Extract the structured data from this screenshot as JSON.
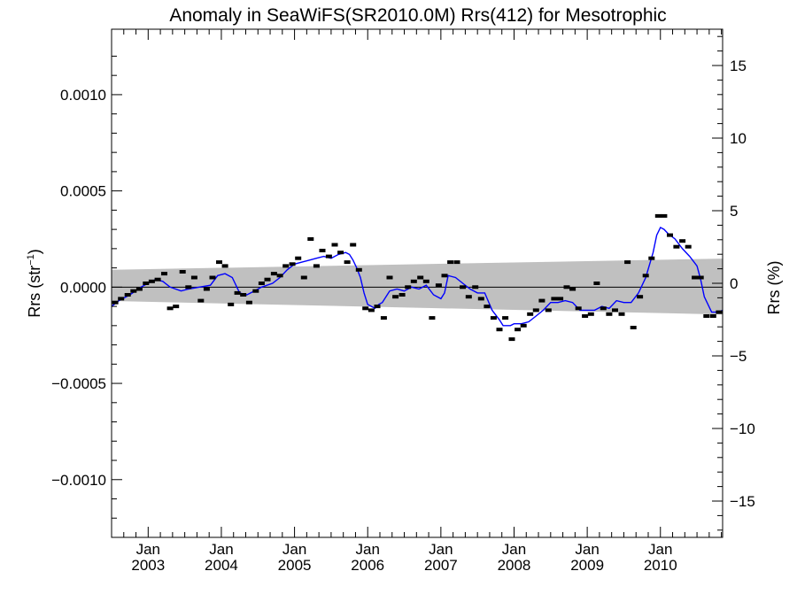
{
  "chart_data": {
    "type": "line",
    "title": "Anomaly in SeaWiFS(SR2010.0M) Rrs(412) for Mesotrophic",
    "ylabel_left_main": "Rrs (str",
    "ylabel_left_sup": "−1",
    "ylabel_left_close": ")",
    "ylabel_right": "Rrs (%)",
    "xlim": [
      2002.5,
      2010.85
    ],
    "ylim_left": [
      -0.0013,
      0.00134
    ],
    "ylim_right": [
      -17.5,
      17.5
    ],
    "yticks_left": [
      {
        "value": 0.001,
        "label": "0.0010"
      },
      {
        "value": 0.0005,
        "label": "0.0005"
      },
      {
        "value": 0.0,
        "label": "0.0000"
      },
      {
        "value": -0.0005,
        "label": "−0.0005"
      },
      {
        "value": -0.001,
        "label": "−0.0010"
      }
    ],
    "yticks_right": [
      {
        "value": 15,
        "label": "15"
      },
      {
        "value": 10,
        "label": "10"
      },
      {
        "value": 5,
        "label": "5"
      },
      {
        "value": 0,
        "label": "0"
      },
      {
        "value": -5,
        "label": "−5"
      },
      {
        "value": -10,
        "label": "−10"
      },
      {
        "value": -15,
        "label": "−15"
      }
    ],
    "xticks": [
      {
        "value": 2003.0,
        "month": "Jan",
        "year": "2003"
      },
      {
        "value": 2004.0,
        "month": "Jan",
        "year": "2004"
      },
      {
        "value": 2005.0,
        "month": "Jan",
        "year": "2005"
      },
      {
        "value": 2006.0,
        "month": "Jan",
        "year": "2006"
      },
      {
        "value": 2007.0,
        "month": "Jan",
        "year": "2007"
      },
      {
        "value": 2008.0,
        "month": "Jan",
        "year": "2008"
      },
      {
        "value": 2009.0,
        "month": "Jan",
        "year": "2009"
      },
      {
        "value": 2010.0,
        "month": "Jan",
        "year": "2010"
      }
    ],
    "band": {
      "x": [
        2002.5,
        2010.85
      ],
      "upper": [
        9e-05,
        0.000148
      ],
      "lower": [
        -7.2e-05,
        -0.000142
      ],
      "color": "#c0c0c0"
    },
    "series": [
      {
        "kind": "markers",
        "color": "#000000",
        "points": [
          [
            2002.55,
            -8e-05
          ],
          [
            2002.63,
            -6e-05
          ],
          [
            2002.72,
            -4e-05
          ],
          [
            2002.8,
            -2e-05
          ],
          [
            2002.88,
            -1e-05
          ],
          [
            2002.97,
            2e-05
          ],
          [
            2003.05,
            3e-05
          ],
          [
            2003.13,
            4e-05
          ],
          [
            2003.22,
            7e-05
          ],
          [
            2003.3,
            -0.00011
          ],
          [
            2003.38,
            -0.0001
          ],
          [
            2003.47,
            8e-05
          ],
          [
            2003.55,
            0.0
          ],
          [
            2003.63,
            5e-05
          ],
          [
            2003.72,
            -7e-05
          ],
          [
            2003.8,
            -1e-05
          ],
          [
            2003.88,
            5e-05
          ],
          [
            2003.97,
            0.00013
          ],
          [
            2004.05,
            0.00011
          ],
          [
            2004.13,
            -9e-05
          ],
          [
            2004.22,
            -3e-05
          ],
          [
            2004.3,
            -4e-05
          ],
          [
            2004.38,
            -8e-05
          ],
          [
            2004.47,
            -2e-05
          ],
          [
            2004.55,
            2e-05
          ],
          [
            2004.63,
            4e-05
          ],
          [
            2004.72,
            7e-05
          ],
          [
            2004.8,
            6e-05
          ],
          [
            2004.88,
            0.00011
          ],
          [
            2004.97,
            0.00012
          ],
          [
            2005.05,
            0.00015
          ],
          [
            2005.13,
            5e-05
          ],
          [
            2005.22,
            0.00025
          ],
          [
            2005.3,
            0.00011
          ],
          [
            2005.38,
            0.00019
          ],
          [
            2005.47,
            0.00016
          ],
          [
            2005.55,
            0.00022
          ],
          [
            2005.63,
            0.00018
          ],
          [
            2005.72,
            0.00013
          ],
          [
            2005.8,
            0.00022
          ],
          [
            2005.88,
            9e-05
          ],
          [
            2005.97,
            -0.00011
          ],
          [
            2006.05,
            -0.00012
          ],
          [
            2006.13,
            -0.0001
          ],
          [
            2006.22,
            -0.00016
          ],
          [
            2006.3,
            5e-05
          ],
          [
            2006.38,
            -5e-05
          ],
          [
            2006.47,
            -4e-05
          ],
          [
            2006.55,
            0.0
          ],
          [
            2006.63,
            3e-05
          ],
          [
            2006.72,
            5e-05
          ],
          [
            2006.8,
            3e-05
          ],
          [
            2006.88,
            -0.00016
          ],
          [
            2006.97,
            1e-05
          ],
          [
            2007.05,
            6e-05
          ],
          [
            2007.13,
            0.00013
          ],
          [
            2007.22,
            0.00013
          ],
          [
            2007.3,
            0.0
          ],
          [
            2007.38,
            -5e-05
          ],
          [
            2007.47,
            0.0
          ],
          [
            2007.55,
            -6e-05
          ],
          [
            2007.63,
            -0.0001
          ],
          [
            2007.72,
            -0.00016
          ],
          [
            2007.8,
            -0.00022
          ],
          [
            2007.88,
            -0.00016
          ],
          [
            2007.97,
            -0.00027
          ],
          [
            2008.05,
            -0.00022
          ],
          [
            2008.13,
            -0.0002
          ],
          [
            2008.22,
            -0.00014
          ],
          [
            2008.3,
            -0.00012
          ],
          [
            2008.38,
            -7e-05
          ],
          [
            2008.47,
            -0.00012
          ],
          [
            2008.55,
            -6e-05
          ],
          [
            2008.63,
            -6e-05
          ],
          [
            2008.72,
            0.0
          ],
          [
            2008.8,
            -1e-05
          ],
          [
            2008.88,
            -0.00011
          ],
          [
            2008.97,
            -0.00015
          ],
          [
            2009.05,
            -0.00014
          ],
          [
            2009.13,
            2e-05
          ],
          [
            2009.22,
            -0.00011
          ],
          [
            2009.3,
            -0.00014
          ],
          [
            2009.38,
            -0.00012
          ],
          [
            2009.47,
            -0.00014
          ],
          [
            2009.55,
            0.00013
          ],
          [
            2009.63,
            -0.00021
          ],
          [
            2009.72,
            -5e-05
          ],
          [
            2009.8,
            6e-05
          ],
          [
            2009.88,
            0.00015
          ],
          [
            2009.97,
            0.00037
          ],
          [
            2010.05,
            0.00037
          ],
          [
            2010.13,
            0.00027
          ],
          [
            2010.22,
            0.00021
          ],
          [
            2010.3,
            0.00024
          ],
          [
            2010.38,
            0.00021
          ],
          [
            2010.47,
            5e-05
          ],
          [
            2010.55,
            5e-05
          ],
          [
            2010.63,
            -0.00015
          ],
          [
            2010.72,
            -0.00015
          ],
          [
            2010.8,
            -0.00013
          ]
        ]
      },
      {
        "kind": "line",
        "color": "#0000ff",
        "points": [
          [
            2002.5,
            -0.0001
          ],
          [
            2002.6,
            -7e-05
          ],
          [
            2002.75,
            -4e-05
          ],
          [
            2002.9,
            0.0
          ],
          [
            2003.0,
            2e-05
          ],
          [
            2003.1,
            4e-05
          ],
          [
            2003.2,
            3e-05
          ],
          [
            2003.3,
            0.0
          ],
          [
            2003.45,
            -2e-05
          ],
          [
            2003.55,
            -1e-05
          ],
          [
            2003.7,
            0.0
          ],
          [
            2003.85,
            1e-05
          ],
          [
            2003.95,
            6e-05
          ],
          [
            2004.05,
            7e-05
          ],
          [
            2004.15,
            5e-05
          ],
          [
            2004.25,
            -3e-05
          ],
          [
            2004.35,
            -4e-05
          ],
          [
            2004.45,
            -2e-05
          ],
          [
            2004.55,
            0.0
          ],
          [
            2004.7,
            2e-05
          ],
          [
            2004.8,
            5e-05
          ],
          [
            2004.9,
            9e-05
          ],
          [
            2005.0,
            0.00012
          ],
          [
            2005.1,
            0.00013
          ],
          [
            2005.2,
            0.00014
          ],
          [
            2005.3,
            0.00015
          ],
          [
            2005.4,
            0.00016
          ],
          [
            2005.5,
            0.00015
          ],
          [
            2005.6,
            0.00017
          ],
          [
            2005.7,
            0.00018
          ],
          [
            2005.75,
            0.00017
          ],
          [
            2005.8,
            0.00014
          ],
          [
            2005.85,
            0.0001
          ],
          [
            2005.9,
            5e-05
          ],
          [
            2005.95,
            -3e-05
          ],
          [
            2006.0,
            -9e-05
          ],
          [
            2006.05,
            -0.0001
          ],
          [
            2006.1,
            -0.00011
          ],
          [
            2006.15,
            -9e-05
          ],
          [
            2006.2,
            -8e-05
          ],
          [
            2006.3,
            -2e-05
          ],
          [
            2006.4,
            -1e-05
          ],
          [
            2006.5,
            -2e-05
          ],
          [
            2006.6,
            0.0
          ],
          [
            2006.7,
            -1e-05
          ],
          [
            2006.8,
            1e-05
          ],
          [
            2006.9,
            -4e-05
          ],
          [
            2007.0,
            -6e-05
          ],
          [
            2007.05,
            -3e-05
          ],
          [
            2007.1,
            6e-05
          ],
          [
            2007.2,
            5e-05
          ],
          [
            2007.3,
            2e-05
          ],
          [
            2007.4,
            -1e-05
          ],
          [
            2007.5,
            -3e-05
          ],
          [
            2007.6,
            -3e-05
          ],
          [
            2007.7,
            -0.00012
          ],
          [
            2007.8,
            -0.00017
          ],
          [
            2007.85,
            -0.0002
          ],
          [
            2007.95,
            -0.0002
          ],
          [
            2008.0,
            -0.00019
          ],
          [
            2008.1,
            -0.00019
          ],
          [
            2008.2,
            -0.00018
          ],
          [
            2008.3,
            -0.00015
          ],
          [
            2008.4,
            -0.00012
          ],
          [
            2008.5,
            -8e-05
          ],
          [
            2008.6,
            -8e-05
          ],
          [
            2008.7,
            -7e-05
          ],
          [
            2008.8,
            -8e-05
          ],
          [
            2008.9,
            -0.00012
          ],
          [
            2009.0,
            -0.00012
          ],
          [
            2009.1,
            -0.00012
          ],
          [
            2009.2,
            -0.0001
          ],
          [
            2009.3,
            -0.00011
          ],
          [
            2009.4,
            -7e-05
          ],
          [
            2009.5,
            -8e-05
          ],
          [
            2009.6,
            -8e-05
          ],
          [
            2009.7,
            -3e-05
          ],
          [
            2009.8,
            5e-05
          ],
          [
            2009.9,
            0.00018
          ],
          [
            2009.95,
            0.00027
          ],
          [
            2010.0,
            0.00031
          ],
          [
            2010.05,
            0.0003
          ],
          [
            2010.1,
            0.00028
          ],
          [
            2010.2,
            0.00025
          ],
          [
            2010.3,
            0.0002
          ],
          [
            2010.4,
            0.00016
          ],
          [
            2010.5,
            0.00011
          ],
          [
            2010.55,
            4e-05
          ],
          [
            2010.6,
            -5e-05
          ],
          [
            2010.7,
            -0.00013
          ],
          [
            2010.8,
            -0.00013
          ],
          [
            2010.85,
            -0.00012
          ]
        ]
      }
    ]
  }
}
